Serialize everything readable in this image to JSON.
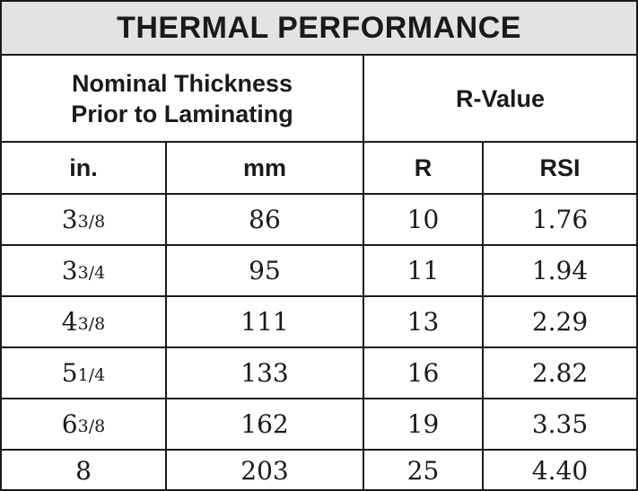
{
  "title": "THERMAL PERFORMANCE",
  "group_headers": {
    "left_line1": "Nominal Thickness",
    "left_line2": "Prior to Laminating",
    "right": "R-Value"
  },
  "columns": [
    "in.",
    "mm",
    "R",
    "RSI"
  ],
  "rows": [
    {
      "in_whole": "3",
      "in_frac": "3/8",
      "mm": "86",
      "r": "10",
      "rsi": "1.76"
    },
    {
      "in_whole": "3",
      "in_frac": "3/4",
      "mm": "95",
      "r": "11",
      "rsi": "1.94"
    },
    {
      "in_whole": "4",
      "in_frac": "3/8",
      "mm": "111",
      "r": "13",
      "rsi": "2.29"
    },
    {
      "in_whole": "5",
      "in_frac": "1/4",
      "mm": "133",
      "r": "16",
      "rsi": "2.82"
    },
    {
      "in_whole": "6",
      "in_frac": "3/8",
      "mm": "162",
      "r": "19",
      "rsi": "3.35"
    },
    {
      "in_whole": "8",
      "in_frac": "",
      "mm": "203",
      "r": "25",
      "rsi": "4.40"
    }
  ]
}
